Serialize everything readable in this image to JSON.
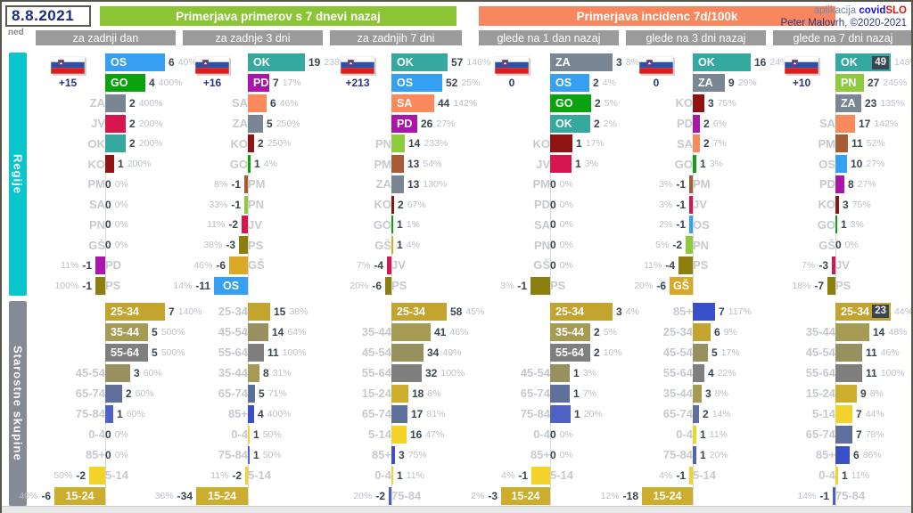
{
  "header": {
    "date": "8.8.2021",
    "day": "ned",
    "green_title": "Primerjava primerov s 7 dnevi nazaj",
    "orange_title": "Primerjava incidenc 7d/100k",
    "credit_app_prefix": "aplikacija",
    "credit_app_covid": "covid",
    "credit_app_slo": "SLO",
    "credit_author": "Peter Malovrh, ©2020-2021"
  },
  "sections": [
    {
      "title": "Regije"
    },
    {
      "title": "Starostne skupine"
    }
  ],
  "columns": [
    {
      "header": "za zadnji dan",
      "flag_delta": "+15"
    },
    {
      "header": "za zadnje 3 dni",
      "flag_delta": "+16"
    },
    {
      "header": "za zadnjih 7 dni",
      "flag_delta": "+213"
    },
    {
      "header": "glede na 1 dan nazaj",
      "flag_delta": "0"
    },
    {
      "header": "glede na 3 dni nazaj",
      "flag_delta": "0"
    },
    {
      "header": "glede na 7 dni nazaj",
      "flag_delta": "+10"
    }
  ],
  "colors": {
    "accents": {
      "green_header": "#8bc434",
      "orange_header": "#f8875f",
      "subheader_gray": "#9b9b9b",
      "regije_sidebar": "#0bc5cd",
      "ages_sidebar": "#858b94",
      "date_navy": "#1b2c85",
      "covid_blue": "#1414e0",
      "slo_red": "#e01414",
      "value_dark": "#3a4650",
      "pct_gray": "#bcc2c8"
    },
    "regions": {
      "OS": "#35a0f2",
      "GO": "#0aa30f",
      "ZA": "#7b8694",
      "JV": "#d5174d",
      "OK": "#35a89f",
      "KO": "#8f1313",
      "PM": "#a85c33",
      "SA": "#fa8a5c",
      "PN": "#8fc93c",
      "GŠ": "#daa827",
      "PD": "#aa16aa",
      "PS": "#8c7f10"
    },
    "ages": {
      "0-4": "#f3d229",
      "5-14": "#f3d229",
      "15-24": "#cdad2c",
      "25-34": "#c2a42e",
      "35-44": "#a59b52",
      "45-54": "#99905f",
      "55-64": "#7f7f7f",
      "65-74": "#5f6f9c",
      "75-84": "#5061c6",
      "85+": "#3a50c8"
    }
  },
  "chart_data": [
    {
      "type": "bar",
      "orientation": "horizontal",
      "title": "Regije — za zadnji dan",
      "color_map": "regions",
      "rows": [
        {
          "label": "OS",
          "value": 6,
          "pct": "40%",
          "w": 67,
          "in": true
        },
        {
          "label": "GO",
          "value": 4,
          "pct": "400%",
          "w": 45,
          "in": true
        },
        {
          "label": "ZA",
          "value": 2,
          "pct": "400%",
          "w": 23
        },
        {
          "label": "JV",
          "value": 2,
          "pct": "200%",
          "w": 23
        },
        {
          "label": "OK",
          "value": 2,
          "pct": "200%",
          "w": 23
        },
        {
          "label": "KO",
          "value": 1,
          "pct": "200%",
          "w": 10
        },
        {
          "label": "PM",
          "value": 0,
          "pct": "0%",
          "w": 0
        },
        {
          "label": "SA",
          "value": 0,
          "pct": "0%",
          "w": 0
        },
        {
          "label": "PN",
          "value": 0,
          "pct": "0%",
          "w": 0
        },
        {
          "label": "GŠ",
          "value": 0,
          "pct": "0%",
          "w": 0
        },
        {
          "label": "PD",
          "value": -1,
          "pct": "11%",
          "w": 11
        },
        {
          "label": "PS",
          "value": -1,
          "pct": "100%",
          "w": 11
        }
      ]
    },
    {
      "type": "bar",
      "orientation": "horizontal",
      "title": "Regije — za zadnje 3 dni",
      "color_map": "regions",
      "rows": [
        {
          "label": "OK",
          "value": 19,
          "pct": "238%",
          "w": 64,
          "in": true
        },
        {
          "label": "PD",
          "value": 7,
          "pct": "17%",
          "w": 24,
          "in": true
        },
        {
          "label": "SA",
          "value": 6,
          "pct": "46%",
          "w": 21
        },
        {
          "label": "ZA",
          "value": 5,
          "pct": "250%",
          "w": 17
        },
        {
          "label": "KO",
          "value": 2,
          "pct": "250%",
          "w": 7
        },
        {
          "label": "GO",
          "value": 1,
          "pct": "4%",
          "w": 3
        },
        {
          "label": "PM",
          "value": -1,
          "pct": "8%",
          "w": 4
        },
        {
          "label": "PN",
          "value": -1,
          "pct": "33%",
          "w": 4
        },
        {
          "label": "JV",
          "value": -2,
          "pct": "11%",
          "w": 7
        },
        {
          "label": "PS",
          "value": -3,
          "pct": "38%",
          "w": 10
        },
        {
          "label": "GŠ",
          "value": -6,
          "pct": "46%",
          "w": 21
        },
        {
          "label": "OS",
          "value": -11,
          "pct": "14%",
          "w": 38,
          "in": true
        }
      ]
    },
    {
      "type": "bar",
      "orientation": "horizontal",
      "title": "Regije — za zadnjih 7 dni",
      "color_map": "regions",
      "rows": [
        {
          "label": "OK",
          "value": 57,
          "pct": "146%",
          "w": 63,
          "in": true
        },
        {
          "label": "OS",
          "value": 52,
          "pct": "25%",
          "w": 57,
          "in": true
        },
        {
          "label": "SA",
          "value": 44,
          "pct": "142%",
          "w": 48,
          "in": true
        },
        {
          "label": "PD",
          "value": 26,
          "pct": "27%",
          "w": 29,
          "in": true
        },
        {
          "label": "PN",
          "value": 14,
          "pct": "233%",
          "w": 15
        },
        {
          "label": "PM",
          "value": 13,
          "pct": "54%",
          "w": 14
        },
        {
          "label": "ZA",
          "value": 13,
          "pct": "130%",
          "w": 14
        },
        {
          "label": "KO",
          "value": 2,
          "pct": "67%",
          "w": 3
        },
        {
          "label": "GO",
          "value": 1,
          "pct": "1%",
          "w": 2
        },
        {
          "label": "GŠ",
          "value": 1,
          "pct": "4%",
          "w": 2
        },
        {
          "label": "JV",
          "value": -4,
          "pct": "7%",
          "w": 5
        },
        {
          "label": "PS",
          "value": -6,
          "pct": "20%",
          "w": 7
        }
      ]
    },
    {
      "type": "bar",
      "orientation": "horizontal",
      "title": "Regije — glede na 1 dan nazaj",
      "color_map": "regions",
      "rows": [
        {
          "label": "ZA",
          "value": 3,
          "pct": "8%",
          "w": 70,
          "in": true
        },
        {
          "label": "OS",
          "value": 2,
          "pct": "4%",
          "w": 44,
          "in": true
        },
        {
          "label": "GO",
          "value": 2,
          "pct": "5%",
          "w": 46,
          "in": true
        },
        {
          "label": "OK",
          "value": 2,
          "pct": "2%",
          "w": 45,
          "in": true
        },
        {
          "label": "KO",
          "value": 1,
          "pct": "17%",
          "w": 25
        },
        {
          "label": "JV",
          "value": 1,
          "pct": "3%",
          "w": 24
        },
        {
          "label": "PM",
          "value": 0,
          "pct": "0%",
          "w": 0
        },
        {
          "label": "PD",
          "value": 0,
          "pct": "0%",
          "w": 0
        },
        {
          "label": "SA",
          "value": 0,
          "pct": "0%",
          "w": 0
        },
        {
          "label": "PN",
          "value": 0,
          "pct": "0%",
          "w": 0
        },
        {
          "label": "GŠ",
          "value": 0,
          "pct": "0%",
          "w": 0
        },
        {
          "label": "PS",
          "value": -1,
          "pct": "3%",
          "w": 22
        }
      ]
    },
    {
      "type": "bar",
      "orientation": "horizontal",
      "title": "Regije — glede na 3 dni nazaj",
      "color_map": "regions",
      "rows": [
        {
          "label": "OK",
          "value": 16,
          "pct": "24%",
          "w": 65,
          "in": true
        },
        {
          "label": "ZA",
          "value": 9,
          "pct": "29%",
          "w": 36,
          "in": true
        },
        {
          "label": "KO",
          "value": 3,
          "pct": "75%",
          "w": 13
        },
        {
          "label": "PD",
          "value": 2,
          "pct": "6%",
          "w": 8
        },
        {
          "label": "SA",
          "value": 2,
          "pct": "7%",
          "w": 8
        },
        {
          "label": "GO",
          "value": 1,
          "pct": "3%",
          "w": 4
        },
        {
          "label": "PM",
          "value": -1,
          "pct": "3%",
          "w": 4
        },
        {
          "label": "JV",
          "value": -1,
          "pct": "3%",
          "w": 4
        },
        {
          "label": "OS",
          "value": -1,
          "pct": "2%",
          "w": 4
        },
        {
          "label": "PN",
          "value": -2,
          "pct": "5%",
          "w": 8
        },
        {
          "label": "PS",
          "value": -4,
          "pct": "11%",
          "w": 16
        },
        {
          "label": "GŠ",
          "value": -6,
          "pct": "20%",
          "w": 26,
          "in": true
        }
      ]
    },
    {
      "type": "bar",
      "orientation": "horizontal",
      "title": "Regije — glede na 7 dni nazaj",
      "color_map": "regions",
      "rows": [
        {
          "label": "OK",
          "value": 49,
          "pct": "148%",
          "w": 62,
          "in": true,
          "vbox": true
        },
        {
          "label": "PN",
          "value": 27,
          "pct": "245%",
          "w": 32,
          "in": true
        },
        {
          "label": "ZA",
          "value": 23,
          "pct": "135%",
          "w": 29,
          "in": true
        },
        {
          "label": "SA",
          "value": 17,
          "pct": "142%",
          "w": 22
        },
        {
          "label": "PM",
          "value": 11,
          "pct": "52%",
          "w": 14
        },
        {
          "label": "OS",
          "value": 10,
          "pct": "27%",
          "w": 13
        },
        {
          "label": "PD",
          "value": 8,
          "pct": "27%",
          "w": 10
        },
        {
          "label": "KO",
          "value": 3,
          "pct": "75%",
          "w": 4
        },
        {
          "label": "GO",
          "value": 1,
          "pct": "3%",
          "w": 2
        },
        {
          "label": "GŠ",
          "value": 0,
          "pct": "0%",
          "w": 0
        },
        {
          "label": "JV",
          "value": -3,
          "pct": "7%",
          "w": 4
        },
        {
          "label": "PS",
          "value": -7,
          "pct": "18%",
          "w": 9
        }
      ]
    },
    {
      "type": "bar",
      "orientation": "horizontal",
      "title": "Starostne skupine — za zadnji dan",
      "color_map": "ages",
      "rows": [
        {
          "label": "25-34",
          "value": 7,
          "pct": "140%",
          "w": 67,
          "in": true
        },
        {
          "label": "35-44",
          "value": 5,
          "pct": "500%",
          "w": 48,
          "in": true
        },
        {
          "label": "55-64",
          "value": 5,
          "pct": "500%",
          "w": 48,
          "in": true
        },
        {
          "label": "45-54",
          "value": 3,
          "pct": "60%",
          "w": 28
        },
        {
          "label": "65-74",
          "value": 2,
          "pct": "60%",
          "w": 19
        },
        {
          "label": "75-84",
          "value": 1,
          "pct": "60%",
          "w": 9
        },
        {
          "label": "0-4",
          "value": 0,
          "pct": "0%",
          "w": 0
        },
        {
          "label": "85+",
          "value": 0,
          "pct": "0%",
          "w": 0
        },
        {
          "label": "5-14",
          "value": -2,
          "pct": "50%",
          "w": 18
        },
        {
          "label": "15-24",
          "value": -6,
          "pct": "40%",
          "w": 57,
          "in": true
        }
      ]
    },
    {
      "type": "bar",
      "orientation": "horizontal",
      "title": "Starostne skupine — za zadnje 3 dni",
      "color_map": "ages",
      "rows": [
        {
          "label": "25-34",
          "value": 15,
          "pct": "38%",
          "w": 25
        },
        {
          "label": "45-54",
          "value": 14,
          "pct": "64%",
          "w": 23
        },
        {
          "label": "55-64",
          "value": 11,
          "pct": "100%",
          "w": 18
        },
        {
          "label": "35-44",
          "value": 8,
          "pct": "31%",
          "w": 13
        },
        {
          "label": "65-74",
          "value": 5,
          "pct": "71%",
          "w": 8
        },
        {
          "label": "85+",
          "value": 4,
          "pct": "400%",
          "w": 7
        },
        {
          "label": "0-4",
          "value": 1,
          "pct": "50%",
          "w": 2
        },
        {
          "label": "75-84",
          "value": 1,
          "pct": "50%",
          "w": 2
        },
        {
          "label": "5-14",
          "value": -2,
          "pct": "11%",
          "w": 3
        },
        {
          "label": "15-24",
          "value": -34,
          "pct": "36%",
          "w": 58,
          "in": true
        }
      ]
    },
    {
      "type": "bar",
      "orientation": "horizontal",
      "title": "Starostne skupine — za zadnjih 7 dni",
      "color_map": "ages",
      "rows": [
        {
          "label": "25-34",
          "value": 58,
          "pct": "45%",
          "w": 62,
          "in": true
        },
        {
          "label": "35-44",
          "value": 41,
          "pct": "46%",
          "w": 44
        },
        {
          "label": "45-54",
          "value": 34,
          "pct": "49%",
          "w": 36
        },
        {
          "label": "55-64",
          "value": 32,
          "pct": "100%",
          "w": 34
        },
        {
          "label": "15-24",
          "value": 18,
          "pct": "8%",
          "w": 19
        },
        {
          "label": "65-74",
          "value": 17,
          "pct": "81%",
          "w": 18
        },
        {
          "label": "5-14",
          "value": 16,
          "pct": "47%",
          "w": 17
        },
        {
          "label": "85+",
          "value": 3,
          "pct": "75%",
          "w": 4
        },
        {
          "label": "0-4",
          "value": 1,
          "pct": "11%",
          "w": 2
        },
        {
          "label": "75-84",
          "value": -2,
          "pct": "20%",
          "w": 3
        }
      ]
    },
    {
      "type": "bar",
      "orientation": "horizontal",
      "title": "Starostne skupine — glede na 1 dan nazaj",
      "color_map": "ages",
      "rows": [
        {
          "label": "25-34",
          "value": 3,
          "pct": "4%",
          "w": 70,
          "in": true
        },
        {
          "label": "35-44",
          "value": 2,
          "pct": "5%",
          "w": 45,
          "in": true
        },
        {
          "label": "55-64",
          "value": 2,
          "pct": "10%",
          "w": 45,
          "in": true
        },
        {
          "label": "45-54",
          "value": 1,
          "pct": "3%",
          "w": 22
        },
        {
          "label": "65-74",
          "value": 1,
          "pct": "7%",
          "w": 22
        },
        {
          "label": "75-84",
          "value": 1,
          "pct": "20%",
          "w": 23
        },
        {
          "label": "0-4",
          "value": 0,
          "pct": "0%",
          "w": 0
        },
        {
          "label": "85+",
          "value": 0,
          "pct": "0%",
          "w": 0
        },
        {
          "label": "5-14",
          "value": -1,
          "pct": "4%",
          "w": 21
        },
        {
          "label": "15-24",
          "value": -3,
          "pct": "2%",
          "w": 55,
          "in": true
        }
      ]
    },
    {
      "type": "bar",
      "orientation": "horizontal",
      "title": "Starostne skupine — glede na 3 dni nazaj",
      "color_map": "ages",
      "rows": [
        {
          "label": "85+",
          "value": 7,
          "pct": "117%",
          "w": 25
        },
        {
          "label": "25-34",
          "value": 6,
          "pct": "9%",
          "w": 20
        },
        {
          "label": "45-54",
          "value": 5,
          "pct": "17%",
          "w": 17
        },
        {
          "label": "55-64",
          "value": 4,
          "pct": "22%",
          "w": 13
        },
        {
          "label": "35-44",
          "value": 3,
          "pct": "8%",
          "w": 10
        },
        {
          "label": "65-74",
          "value": 2,
          "pct": "14%",
          "w": 7
        },
        {
          "label": "0-4",
          "value": 1,
          "pct": "11%",
          "w": 4
        },
        {
          "label": "75-84",
          "value": 1,
          "pct": "20%",
          "w": 4
        },
        {
          "label": "5-14",
          "value": -1,
          "pct": "4%",
          "w": 4
        },
        {
          "label": "15-24",
          "value": -18,
          "pct": "12%",
          "w": 57,
          "in": true
        }
      ]
    },
    {
      "type": "bar",
      "orientation": "horizontal",
      "title": "Starostne skupine — glede na 7 dni nazaj",
      "color_map": "ages",
      "rows": [
        {
          "label": "25-34",
          "value": 23,
          "pct": "44%",
          "w": 62,
          "in": true,
          "vbox": true
        },
        {
          "label": "35-44",
          "value": 14,
          "pct": "48%",
          "w": 38
        },
        {
          "label": "45-54",
          "value": 11,
          "pct": "46%",
          "w": 30
        },
        {
          "label": "55-64",
          "value": 11,
          "pct": "100%",
          "w": 30
        },
        {
          "label": "15-24",
          "value": 9,
          "pct": "8%",
          "w": 24
        },
        {
          "label": "5-14",
          "value": 7,
          "pct": "44%",
          "w": 19
        },
        {
          "label": "65-74",
          "value": 7,
          "pct": "78%",
          "w": 19
        },
        {
          "label": "85+",
          "value": 6,
          "pct": "86%",
          "w": 16
        },
        {
          "label": "0-4",
          "value": 1,
          "pct": "11%",
          "w": 3
        },
        {
          "label": "75-84",
          "value": -1,
          "pct": "14%",
          "w": 3
        }
      ]
    }
  ]
}
